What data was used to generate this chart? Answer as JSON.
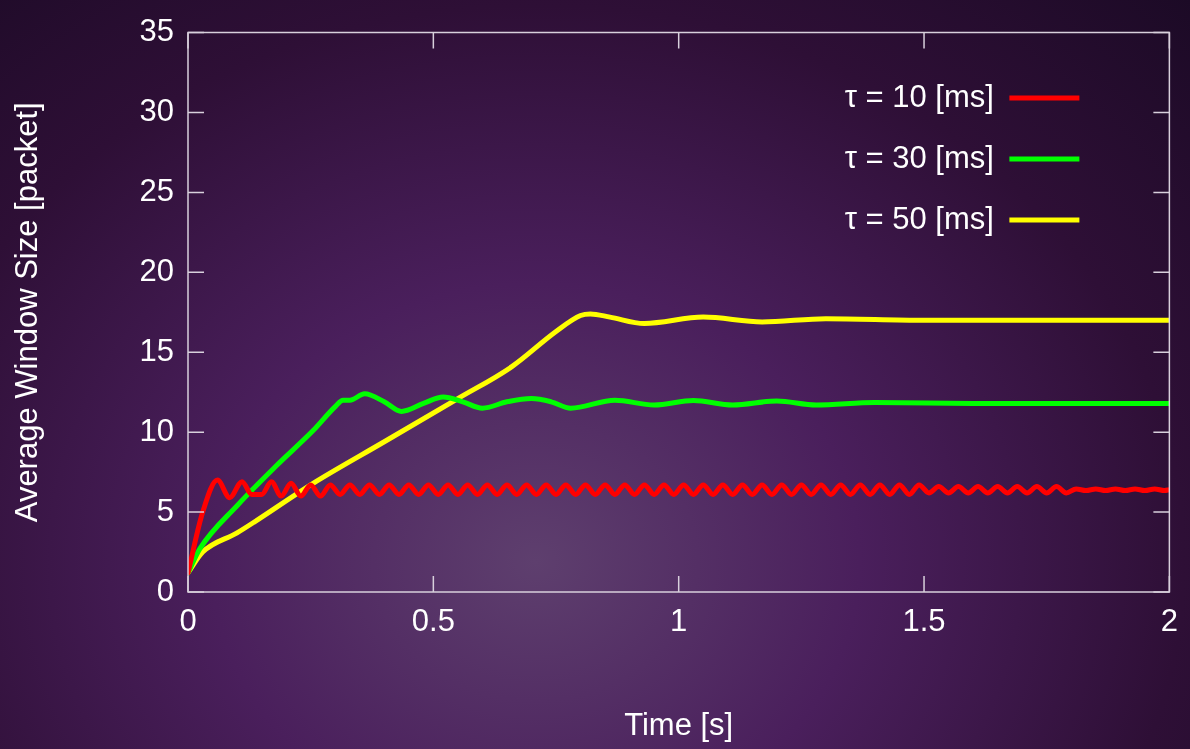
{
  "chart_data": {
    "type": "line",
    "xlabel": "Time [s]",
    "ylabel": "Average Window Size [packet]",
    "xlim": [
      0,
      2
    ],
    "ylim": [
      0,
      35
    ],
    "xticks": [
      0,
      0.5,
      1,
      1.5,
      2
    ],
    "yticks": [
      0,
      5,
      10,
      15,
      20,
      25,
      30,
      35
    ],
    "grid": false,
    "legend": "top right",
    "marker": "none",
    "line_style": "solid",
    "series": [
      {
        "name": "τ = 10 [ms]",
        "color": "#ff0000",
        "x": [
          0,
          0.03,
          0.06,
          0.085,
          0.11,
          0.13,
          0.15,
          0.17,
          0.19,
          0.21,
          0.23,
          0.25,
          0.27,
          0.29,
          0.31,
          0.33,
          0.35,
          0.37,
          0.39,
          0.41,
          0.43,
          0.45,
          0.47,
          0.49,
          0.51,
          0.53,
          0.55,
          0.57,
          0.59,
          0.61,
          0.63,
          0.65,
          0.67,
          0.69,
          0.71,
          0.73,
          0.75,
          0.77,
          0.79,
          0.81,
          0.83,
          0.85,
          0.87,
          0.89,
          0.91,
          0.93,
          0.95,
          0.97,
          0.99,
          1.01,
          1.03,
          1.05,
          1.07,
          1.09,
          1.11,
          1.13,
          1.15,
          1.17,
          1.19,
          1.21,
          1.23,
          1.25,
          1.27,
          1.29,
          1.31,
          1.33,
          1.35,
          1.37,
          1.39,
          1.41,
          1.43,
          1.45,
          1.47,
          1.49,
          1.51,
          1.53,
          1.55,
          1.57,
          1.59,
          1.61,
          1.63,
          1.65,
          1.67,
          1.69,
          1.71,
          1.73,
          1.75,
          1.77,
          1.79,
          1.81,
          1.83,
          1.85,
          1.87,
          1.89,
          1.91,
          1.93,
          1.95,
          1.97,
          1.99,
          2
        ],
        "values": [
          1.2,
          5.0,
          7.0,
          5.9,
          6.9,
          6.1,
          6.1,
          6.9,
          6.0,
          6.8,
          6.0,
          6.7,
          6.0,
          6.7,
          6.1,
          6.7,
          6.1,
          6.7,
          6.1,
          6.7,
          6.1,
          6.7,
          6.1,
          6.7,
          6.1,
          6.7,
          6.1,
          6.7,
          6.1,
          6.7,
          6.1,
          6.7,
          6.1,
          6.7,
          6.1,
          6.7,
          6.1,
          6.7,
          6.1,
          6.7,
          6.1,
          6.7,
          6.1,
          6.7,
          6.1,
          6.7,
          6.1,
          6.7,
          6.1,
          6.7,
          6.1,
          6.7,
          6.1,
          6.7,
          6.1,
          6.7,
          6.1,
          6.7,
          6.1,
          6.7,
          6.1,
          6.7,
          6.1,
          6.7,
          6.1,
          6.7,
          6.1,
          6.7,
          6.1,
          6.7,
          6.1,
          6.7,
          6.1,
          6.7,
          6.2,
          6.6,
          6.2,
          6.6,
          6.2,
          6.6,
          6.2,
          6.6,
          6.2,
          6.6,
          6.2,
          6.6,
          6.2,
          6.6,
          6.2,
          6.45,
          6.35,
          6.45,
          6.35,
          6.45,
          6.35,
          6.45,
          6.35,
          6.45,
          6.35,
          6.4
        ]
      },
      {
        "name": "τ = 30 [ms]",
        "color": "#00ff00",
        "x": [
          0,
          0.024,
          0.1,
          0.18,
          0.255,
          0.3,
          0.316,
          0.33,
          0.36,
          0.4,
          0.435,
          0.48,
          0.52,
          0.56,
          0.6,
          0.65,
          0.7,
          0.74,
          0.78,
          0.87,
          0.95,
          1.03,
          1.11,
          1.2,
          1.28,
          1.4,
          1.6,
          1.8,
          2
        ],
        "values": [
          1.2,
          2.7,
          5.4,
          7.9,
          10.1,
          11.6,
          12.0,
          12.0,
          12.4,
          11.9,
          11.3,
          11.8,
          12.2,
          11.9,
          11.5,
          11.9,
          12.1,
          11.9,
          11.5,
          12.0,
          11.7,
          11.98,
          11.7,
          11.95,
          11.7,
          11.85,
          11.8,
          11.8,
          11.8
        ]
      },
      {
        "name": "τ = 50 [ms]",
        "color": "#ffff00",
        "x": [
          0,
          0.03,
          0.1,
          0.255,
          0.4,
          0.55,
          0.66,
          0.75,
          0.8,
          0.82,
          0.86,
          0.93,
          1.05,
          1.17,
          1.3,
          1.5,
          1.75,
          2
        ],
        "values": [
          1.2,
          2.5,
          3.7,
          6.8,
          9.4,
          12.1,
          14.1,
          16.3,
          17.3,
          17.4,
          17.2,
          16.8,
          17.2,
          16.9,
          17.1,
          17.0,
          17.0,
          17.0
        ]
      }
    ]
  }
}
